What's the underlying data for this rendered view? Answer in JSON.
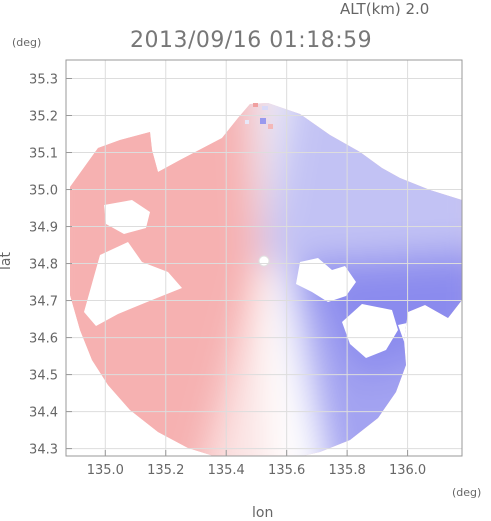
{
  "header": {
    "altitude": "ALT(km) 2.0",
    "timestamp": "2013/09/16 01:18:59"
  },
  "chart_data": {
    "type": "heatmap",
    "title": "2013/09/16 01:18:59",
    "subtitle": "ALT(km) 2.0",
    "xlabel": "lon",
    "ylabel": "lat",
    "x_unit": "(deg)",
    "y_unit": "(deg)",
    "xlim": [
      134.87,
      136.18
    ],
    "ylim": [
      34.28,
      35.35
    ],
    "xticks": [
      135.0,
      135.2,
      135.4,
      135.6,
      135.8,
      136.0
    ],
    "xtick_labels": [
      "135.0",
      "135.2",
      "135.4",
      "135.6",
      "135.8",
      "136.0"
    ],
    "yticks": [
      34.3,
      34.4,
      34.5,
      34.6,
      34.7,
      34.8,
      34.9,
      35.0,
      35.1,
      35.2,
      35.3
    ],
    "ytick_labels": [
      "34.3",
      "34.4",
      "34.5",
      "34.6",
      "34.7",
      "34.8",
      "34.9",
      "35.0",
      "35.1",
      "35.2",
      "35.3"
    ],
    "grid": true,
    "radar_center": [
      135.52,
      34.82
    ],
    "colors": {
      "approaching": "#7c7cf2",
      "receding": "#f5a8a8",
      "zero": "#ffffff",
      "grid": "#dddddd",
      "axes": "#999999"
    }
  }
}
